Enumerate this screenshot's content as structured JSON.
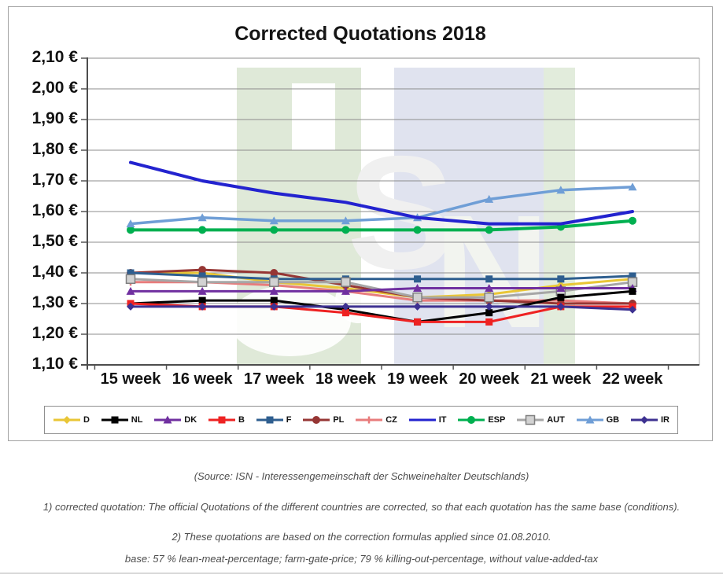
{
  "chart_data": {
    "type": "line",
    "title": "Corrected Quotations 2018",
    "x_categories": [
      "15 week",
      "16 week",
      "17 week",
      "18 week",
      "19 week",
      "20 week",
      "21 week",
      "22 week"
    ],
    "ylim": [
      1.1,
      2.1
    ],
    "y_tick_step": 0.1,
    "y_tick_labels": [
      "2,10 €",
      "2,00 €",
      "1,90 €",
      "1,80 €",
      "1,70 €",
      "1,60 €",
      "1,50 €",
      "1,40 €",
      "1,30 €",
      "1,20 €",
      "1,10 €"
    ],
    "grid": true,
    "legend_position": "bottom",
    "unit": "EUR per kg",
    "series": [
      {
        "name": "D",
        "color": "#e9c636",
        "marker": "diamond",
        "width": 3,
        "values": [
          1.4,
          1.4,
          1.37,
          1.35,
          1.32,
          1.33,
          1.36,
          1.38
        ]
      },
      {
        "name": "NL",
        "color": "#000000",
        "marker": "square",
        "width": 3,
        "values": [
          1.3,
          1.31,
          1.31,
          1.28,
          1.24,
          1.27,
          1.32,
          1.34
        ]
      },
      {
        "name": "DK",
        "color": "#7030a0",
        "marker": "triangle",
        "width": 3,
        "values": [
          1.34,
          1.34,
          1.34,
          1.34,
          1.35,
          1.35,
          1.35,
          1.35
        ]
      },
      {
        "name": "B",
        "color": "#ee2222",
        "marker": "square",
        "width": 3,
        "values": [
          1.3,
          1.29,
          1.29,
          1.27,
          1.24,
          1.24,
          1.29,
          1.29
        ]
      },
      {
        "name": "F",
        "color": "#2e5e8f",
        "marker": "square",
        "width": 3,
        "values": [
          1.4,
          1.39,
          1.38,
          1.38,
          1.38,
          1.38,
          1.38,
          1.39
        ]
      },
      {
        "name": "PL",
        "color": "#963634",
        "marker": "circle",
        "width": 3,
        "values": [
          1.4,
          1.41,
          1.4,
          1.36,
          1.32,
          1.31,
          1.3,
          1.3
        ]
      },
      {
        "name": "CZ",
        "color": "#e87c7c",
        "marker": "plus",
        "width": 3,
        "values": [
          1.37,
          1.37,
          1.36,
          1.34,
          1.31,
          1.31,
          1.31,
          1.3
        ]
      },
      {
        "name": "IT",
        "color": "#2323cf",
        "marker": "none",
        "width": 4,
        "values": [
          1.76,
          1.7,
          1.66,
          1.63,
          1.58,
          1.56,
          1.56,
          1.6
        ]
      },
      {
        "name": "ESP",
        "color": "#00b050",
        "marker": "circle",
        "width": 4,
        "values": [
          1.54,
          1.54,
          1.54,
          1.54,
          1.54,
          1.54,
          1.55,
          1.57
        ]
      },
      {
        "name": "AUT",
        "color": "#a6a6a6",
        "marker": "square-large",
        "width": 3,
        "values": [
          1.38,
          1.37,
          1.37,
          1.37,
          1.32,
          1.32,
          1.34,
          1.37
        ]
      },
      {
        "name": "GB",
        "color": "#6f9ed6",
        "marker": "triangle",
        "width": 3.5,
        "values": [
          1.56,
          1.58,
          1.57,
          1.57,
          1.58,
          1.64,
          1.67,
          1.68
        ]
      },
      {
        "name": "IR",
        "color": "#3d3191",
        "marker": "diamond",
        "width": 3,
        "values": [
          1.29,
          1.29,
          1.29,
          1.29,
          1.29,
          1.29,
          1.29,
          1.28
        ]
      }
    ]
  },
  "watermark": {
    "letters": [
      "I",
      "S",
      "N"
    ]
  },
  "footnotes": [
    "(Source: ISN - Interessengemeinschaft der Schweinehalter Deutschlands)",
    "1) corrected quotation: The official Quotations of the different countries are corrected, so that each quotation has the same base (conditions).",
    "2) These quotations are based on the correction formulas applied since 01.08.2010.",
    "base: 57 % lean-meat-percentage; farm-gate-price; 79 % killing-out-percentage, without value-added-tax"
  ]
}
